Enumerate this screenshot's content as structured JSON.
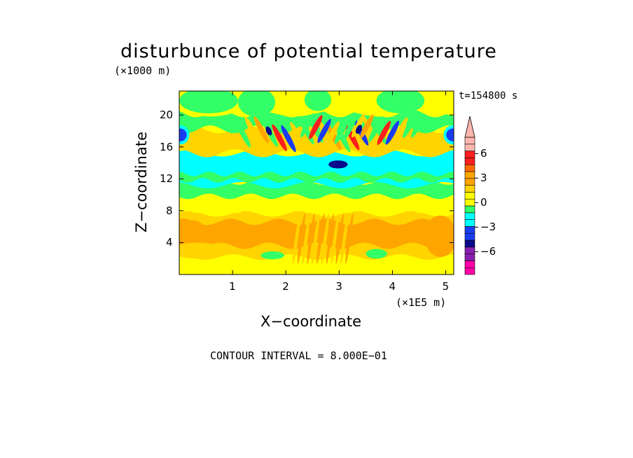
{
  "chart_data": {
    "type": "heatmap",
    "title": "disturbunce of potential temperature",
    "xlabel": "X−coordinate",
    "ylabel": "Z−coordinate",
    "x_scale_label": "(×1E5 m)",
    "y_scale_label": "(×1000 m)",
    "time_label": "t=154800 s",
    "footer": "CONTOUR INTERVAL = 8.000E−01",
    "xlim": [
      0,
      5.15
    ],
    "ylim": [
      0,
      23
    ],
    "xticks": [
      1,
      2,
      3,
      4,
      5
    ],
    "yticks": [
      4,
      8,
      12,
      16,
      20
    ],
    "colorbar": {
      "levels": [
        -8.8,
        -8.0,
        -7.2,
        -6.4,
        -5.6,
        -4.8,
        -4.0,
        -3.2,
        -2.4,
        -1.6,
        -0.8,
        0.0,
        0.8,
        1.6,
        2.4,
        3.2,
        4.0,
        4.8,
        5.6,
        6.4,
        7.2,
        8.0
      ],
      "tick_labels": [
        "6",
        "3",
        "0",
        "−3",
        "−6"
      ],
      "tick_values": [
        6,
        3,
        0,
        -3,
        -6
      ],
      "extend": "max"
    },
    "palette": {
      "magenta": "#ff00a8",
      "purple": "#8a1fb0",
      "navy": "#0a0a8c",
      "blue": "#1a3cf0",
      "cyan": "#00ffff",
      "green": "#33ff66",
      "yellow": "#ffff00",
      "gold": "#ffd400",
      "orange": "#ffa500",
      "darkorange": "#ff6a00",
      "red": "#ff1e1e",
      "pink": "#ffb6b0"
    },
    "fields": [
      {
        "region": "z 0-2",
        "value": 0.3,
        "color": "yellow"
      },
      {
        "region": "z 2-8",
        "value": 1.5,
        "color": "orange"
      },
      {
        "region": "z 8-10",
        "value": 0.3,
        "color": "yellow"
      },
      {
        "region": "z 10-11.5",
        "value": -0.4,
        "color": "green"
      },
      {
        "region": "z 11.5-15",
        "value": -1.2,
        "color": "cyan"
      },
      {
        "region": "z 15-20",
        "value": 0.5,
        "color": "yellow/green bands"
      },
      {
        "region": "z 20-23",
        "value": 0.0,
        "color": "green/yellow"
      },
      {
        "region": "upper corners",
        "value": -3.5,
        "color": "blue"
      }
    ]
  }
}
